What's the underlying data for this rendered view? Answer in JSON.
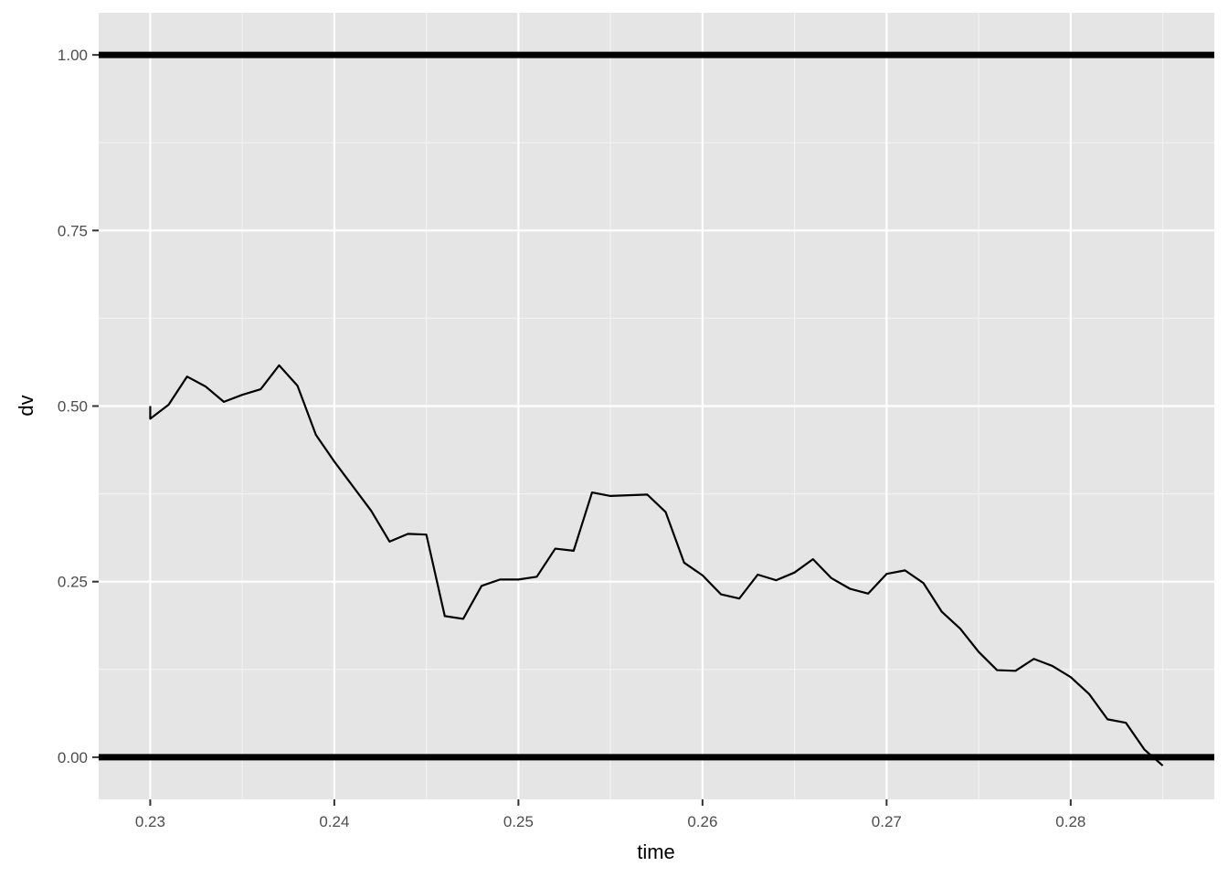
{
  "chart_data": {
    "type": "line",
    "title": "",
    "xlabel": "time",
    "ylabel": "dv",
    "xlim": [
      0.2272,
      0.2878
    ],
    "ylim": [
      -0.06,
      1.06
    ],
    "x_ticks": [
      0.23,
      0.24,
      0.25,
      0.26,
      0.27,
      0.28
    ],
    "x_tick_labels": [
      "0.23",
      "0.24",
      "0.25",
      "0.26",
      "0.27",
      "0.28"
    ],
    "y_ticks": [
      0,
      0.25,
      0.5,
      0.75,
      1
    ],
    "y_tick_labels": [
      "0.00",
      "0.25",
      "0.50",
      "0.75",
      "1.00"
    ],
    "grid": true,
    "reference_lines": [
      {
        "axis": "y",
        "value": 1.0
      },
      {
        "axis": "y",
        "value": 0.0
      }
    ],
    "series": [
      {
        "x": [
          0.23,
          0.23,
          0.231,
          0.232,
          0.233,
          0.234,
          0.235,
          0.236,
          0.237,
          0.238,
          0.239,
          0.24,
          0.241,
          0.242,
          0.243,
          0.244,
          0.245,
          0.246,
          0.247,
          0.248,
          0.249,
          0.25,
          0.251,
          0.252,
          0.253,
          0.254,
          0.255,
          0.256,
          0.257,
          0.258,
          0.259,
          0.26,
          0.261,
          0.262,
          0.263,
          0.264,
          0.265,
          0.266,
          0.267,
          0.268,
          0.269,
          0.27,
          0.271,
          0.272,
          0.273,
          0.274,
          0.275,
          0.276,
          0.277,
          0.278,
          0.279,
          0.28,
          0.281,
          0.282,
          0.283,
          0.284,
          0.285
        ],
        "y": [
          0.5,
          0.482,
          0.502,
          0.542,
          0.528,
          0.506,
          0.516,
          0.524,
          0.558,
          0.529,
          0.459,
          0.421,
          0.386,
          0.351,
          0.307,
          0.318,
          0.317,
          0.201,
          0.197,
          0.244,
          0.253,
          0.253,
          0.257,
          0.297,
          0.294,
          0.377,
          0.372,
          0.373,
          0.374,
          0.349,
          0.277,
          0.259,
          0.232,
          0.226,
          0.26,
          0.252,
          0.263,
          0.282,
          0.255,
          0.24,
          0.233,
          0.261,
          0.266,
          0.248,
          0.207,
          0.183,
          0.15,
          0.124,
          0.123,
          0.14,
          0.13,
          0.114,
          0.09,
          0.054,
          0.049,
          0.011,
          -0.012
        ]
      }
    ]
  }
}
